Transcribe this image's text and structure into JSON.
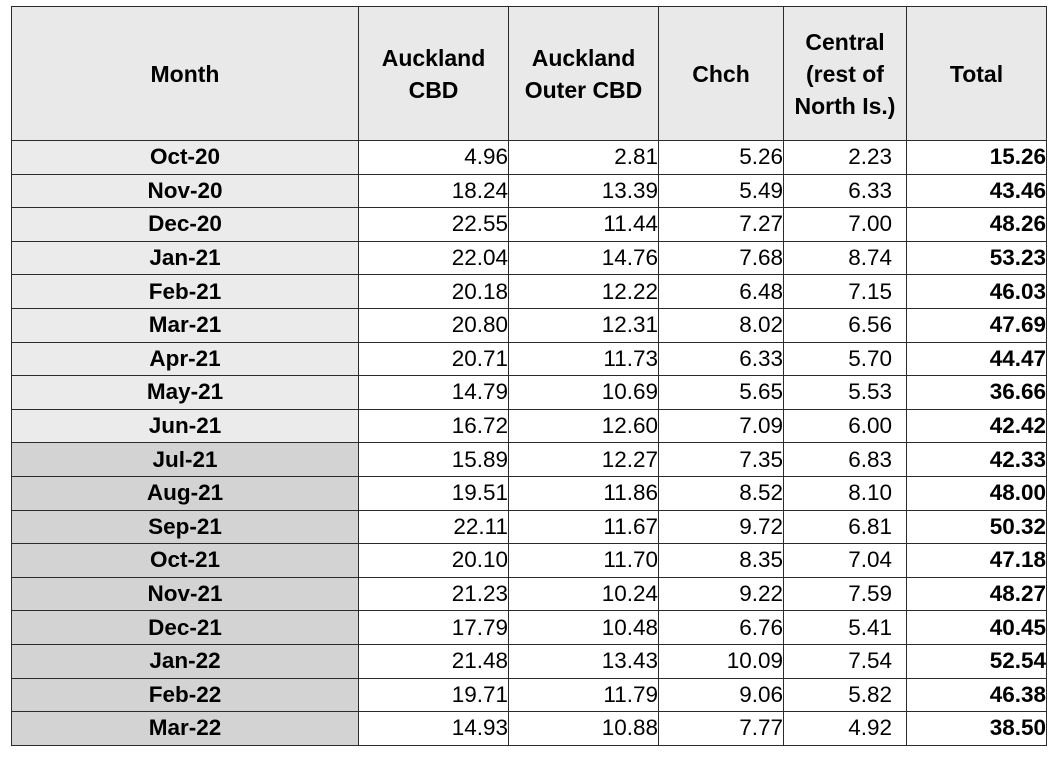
{
  "table": {
    "headers": [
      [
        "Month"
      ],
      [
        "Auckland",
        "CBD"
      ],
      [
        "Auckland",
        "Outer CBD"
      ],
      [
        "Chch"
      ],
      [
        "Central",
        "(rest of",
        "North Is.)"
      ],
      [
        "Total"
      ]
    ],
    "rows": [
      {
        "month": "Oct-20",
        "akl_cbd": "4.96",
        "akl_outer": "2.81",
        "chch": "5.26",
        "central": "2.23",
        "total": "15.26",
        "shade": "light"
      },
      {
        "month": "Nov-20",
        "akl_cbd": "18.24",
        "akl_outer": "13.39",
        "chch": "5.49",
        "central": "6.33",
        "total": "43.46",
        "shade": "light"
      },
      {
        "month": "Dec-20",
        "akl_cbd": "22.55",
        "akl_outer": "11.44",
        "chch": "7.27",
        "central": "7.00",
        "total": "48.26",
        "shade": "light"
      },
      {
        "month": "Jan-21",
        "akl_cbd": "22.04",
        "akl_outer": "14.76",
        "chch": "7.68",
        "central": "8.74",
        "total": "53.23",
        "shade": "light"
      },
      {
        "month": "Feb-21",
        "akl_cbd": "20.18",
        "akl_outer": "12.22",
        "chch": "6.48",
        "central": "7.15",
        "total": "46.03",
        "shade": "light"
      },
      {
        "month": "Mar-21",
        "akl_cbd": "20.80",
        "akl_outer": "12.31",
        "chch": "8.02",
        "central": "6.56",
        "total": "47.69",
        "shade": "light"
      },
      {
        "month": "Apr-21",
        "akl_cbd": "20.71",
        "akl_outer": "11.73",
        "chch": "6.33",
        "central": "5.70",
        "total": "44.47",
        "shade": "light"
      },
      {
        "month": "May-21",
        "akl_cbd": "14.79",
        "akl_outer": "10.69",
        "chch": "5.65",
        "central": "5.53",
        "total": "36.66",
        "shade": "light"
      },
      {
        "month": "Jun-21",
        "akl_cbd": "16.72",
        "akl_outer": "12.60",
        "chch": "7.09",
        "central": "6.00",
        "total": "42.42",
        "shade": "light"
      },
      {
        "month": "Jul-21",
        "akl_cbd": "15.89",
        "akl_outer": "12.27",
        "chch": "7.35",
        "central": "6.83",
        "total": "42.33",
        "shade": "dark"
      },
      {
        "month": "Aug-21",
        "akl_cbd": "19.51",
        "akl_outer": "11.86",
        "chch": "8.52",
        "central": "8.10",
        "total": "48.00",
        "shade": "dark"
      },
      {
        "month": "Sep-21",
        "akl_cbd": "22.11",
        "akl_outer": "11.67",
        "chch": "9.72",
        "central": "6.81",
        "total": "50.32",
        "shade": "dark"
      },
      {
        "month": "Oct-21",
        "akl_cbd": "20.10",
        "akl_outer": "11.70",
        "chch": "8.35",
        "central": "7.04",
        "total": "47.18",
        "shade": "dark"
      },
      {
        "month": "Nov-21",
        "akl_cbd": "21.23",
        "akl_outer": "10.24",
        "chch": "9.22",
        "central": "7.59",
        "total": "48.27",
        "shade": "dark"
      },
      {
        "month": "Dec-21",
        "akl_cbd": "17.79",
        "akl_outer": "10.48",
        "chch": "6.76",
        "central": "5.41",
        "total": "40.45",
        "shade": "dark"
      },
      {
        "month": "Jan-22",
        "akl_cbd": "21.48",
        "akl_outer": "13.43",
        "chch": "10.09",
        "central": "7.54",
        "total": "52.54",
        "shade": "dark"
      },
      {
        "month": "Feb-22",
        "akl_cbd": "19.71",
        "akl_outer": "11.79",
        "chch": "9.06",
        "central": "5.82",
        "total": "46.38",
        "shade": "dark"
      },
      {
        "month": "Mar-22",
        "akl_cbd": "14.93",
        "akl_outer": "10.88",
        "chch": "7.77",
        "central": "4.92",
        "total": "38.50",
        "shade": "dark"
      }
    ]
  },
  "colors": {
    "header_bg": "#e9e9e9",
    "month_light_bg": "#ebebeb",
    "month_dark_bg": "#d3d3d3",
    "border": "#2b2b2b"
  }
}
